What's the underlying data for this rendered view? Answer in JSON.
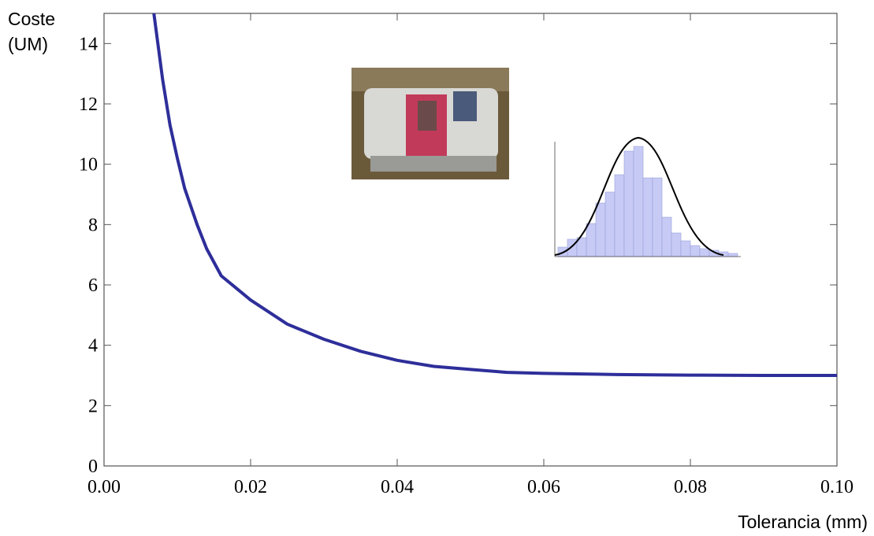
{
  "chart_data": {
    "type": "line",
    "x_label": "Tolerancia (mm)",
    "y_label": "Coste (UM)",
    "x": [
      0.0068,
      0.008,
      0.009,
      0.01,
      0.011,
      0.0127,
      0.014,
      0.016,
      0.018,
      0.02,
      0.025,
      0.03,
      0.035,
      0.04,
      0.045,
      0.05,
      0.055,
      0.06,
      0.07,
      0.08,
      0.09,
      0.1
    ],
    "series": [
      {
        "color": "#2e2e9a",
        "values": [
          15,
          12.8,
          11.3,
          10.2,
          9.2,
          8,
          7.2,
          6.3,
          5.9,
          5.5,
          4.7,
          4.2,
          3.8,
          3.5,
          3.3,
          3.2,
          3.1,
          3.07,
          3.03,
          3.01,
          3.0,
          3.0
        ]
      }
    ],
    "xlim": [
      0,
      0.1
    ],
    "ylim": [
      0,
      15
    ],
    "xticks": [
      {
        "value": 0,
        "label": "0.00"
      },
      {
        "value": 0.02,
        "label": "0.02"
      },
      {
        "value": 0.04,
        "label": "0.04"
      },
      {
        "value": 0.06,
        "label": "0.06"
      },
      {
        "value": 0.08,
        "label": "0.08"
      },
      {
        "value": 0.1,
        "label": "0.10"
      }
    ],
    "yticks": [
      0,
      2,
      4,
      6,
      8,
      10,
      12,
      14
    ]
  }
}
